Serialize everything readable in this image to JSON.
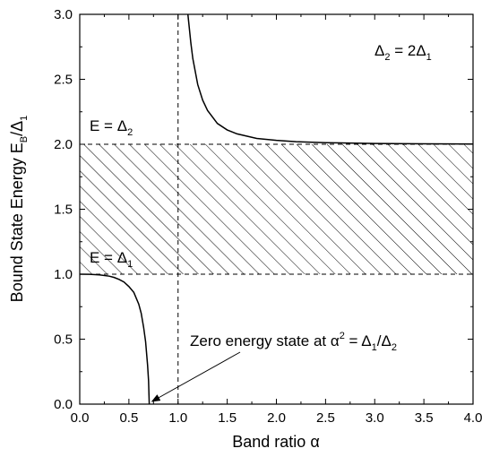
{
  "chart_data": {
    "type": "line",
    "xlabel": "Band ratio α",
    "ylabel": "Bound State Energy E_B/Δ_1",
    "xlim": [
      0.0,
      4.0
    ],
    "ylim": [
      0.0,
      3.0
    ],
    "x_ticks": [
      "0.0",
      "0.5",
      "1.0",
      "1.5",
      "2.0",
      "2.5",
      "3.0",
      "3.5",
      "4.0"
    ],
    "y_ticks": [
      "0.0",
      "0.5",
      "1.0",
      "1.5",
      "2.0",
      "2.5",
      "3.0"
    ],
    "grid": false,
    "legend": "none",
    "series": [
      {
        "style": "solid",
        "x": [
          0.0,
          0.1,
          0.2,
          0.3,
          0.35,
          0.4,
          0.45,
          0.5,
          0.55,
          0.6,
          0.625,
          0.65,
          0.67,
          0.69,
          0.7,
          0.707
        ],
        "y": [
          1.0,
          0.999,
          0.995,
          0.985,
          0.975,
          0.96,
          0.94,
          0.905,
          0.86,
          0.77,
          0.7,
          0.59,
          0.48,
          0.3,
          0.18,
          0.0
        ]
      },
      {
        "style": "solid",
        "x": [
          1.1,
          1.13,
          1.15,
          1.2,
          1.25,
          1.3,
          1.4,
          1.5,
          1.6,
          1.8,
          2.0,
          2.2,
          2.5,
          3.0,
          3.5,
          4.0
        ],
        "y": [
          3.0,
          2.78,
          2.66,
          2.46,
          2.34,
          2.26,
          2.16,
          2.11,
          2.08,
          2.045,
          2.03,
          2.02,
          2.012,
          2.006,
          2.003,
          2.002
        ]
      }
    ],
    "reference_lines": [
      {
        "orientation": "horizontal",
        "value": 2.0,
        "style": "dashed"
      },
      {
        "orientation": "horizontal",
        "value": 1.0,
        "style": "dashed"
      },
      {
        "orientation": "vertical",
        "value": 1.0,
        "style": "dashed"
      }
    ],
    "shaded_band": {
      "y_from": 1.0,
      "y_to": 2.0,
      "pattern": "hatched"
    },
    "annotations": {
      "ratio_main": "Δ",
      "ratio_sub1": "2",
      "ratio_eq": " = 2Δ",
      "ratio_sub2": "1",
      "e2_main": "E = Δ",
      "e2_sub": "2",
      "e1_main": "E = Δ",
      "e1_sub": "1",
      "zero_main": "Zero energy state at α",
      "zero_sup": "2",
      "zero_eq": " = Δ",
      "zero_sub1": "1",
      "zero_slash": "/Δ",
      "zero_sub2": "2",
      "arrow_target": {
        "x": 0.707,
        "y": 0.0
      }
    }
  }
}
